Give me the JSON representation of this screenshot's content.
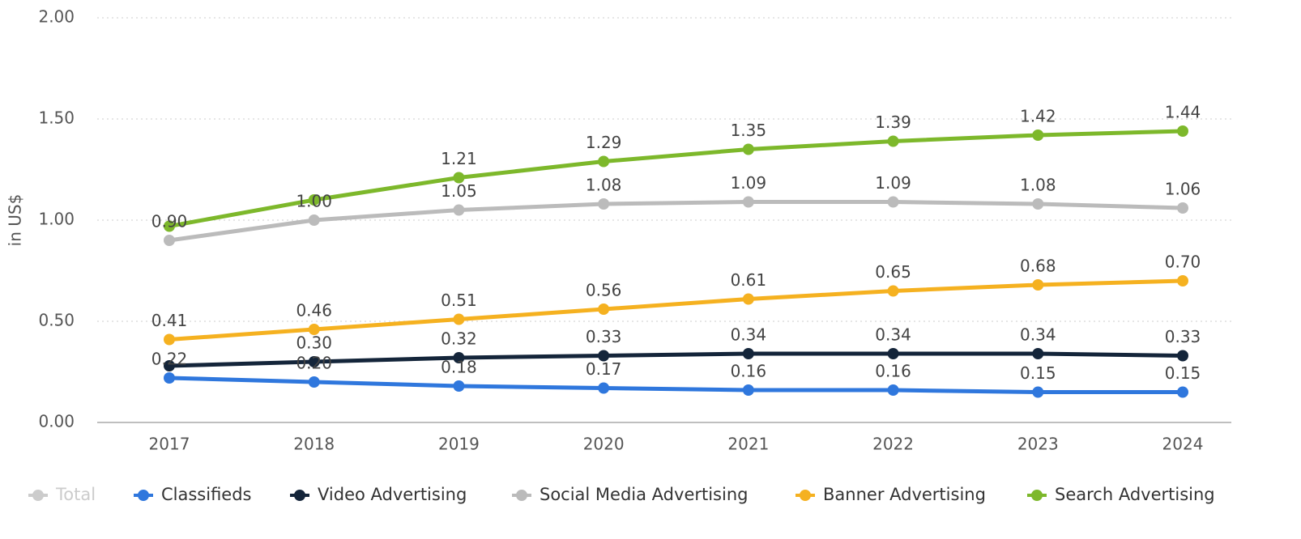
{
  "chart_data": {
    "type": "line",
    "y_label": "in US$",
    "categories": [
      "2017",
      "2018",
      "2019",
      "2020",
      "2021",
      "2022",
      "2023",
      "2024"
    ],
    "ylim": [
      0,
      2
    ],
    "yticks": [
      {
        "value": 0,
        "label": "0.00"
      },
      {
        "value": 0.5,
        "label": "0.50"
      },
      {
        "value": 1,
        "label": "1.00"
      },
      {
        "value": 1.5,
        "label": "1.50"
      },
      {
        "value": 2,
        "label": "2.00"
      }
    ],
    "grid": true,
    "legend": "bottom",
    "series": [
      {
        "name": "Total",
        "color": "#cccccc",
        "hidden": true
      },
      {
        "name": "Classifieds",
        "color": "#2f77dd",
        "values": [
          0.22,
          0.2,
          0.18,
          0.17,
          0.16,
          0.16,
          0.15,
          0.15
        ],
        "value_labels": [
          "0.22",
          "0.20",
          "0.18",
          "0.17",
          "0.16",
          "0.16",
          "0.15",
          "0.15"
        ]
      },
      {
        "name": "Video Advertising",
        "color": "#14253a",
        "values": [
          0.28,
          0.3,
          0.32,
          0.33,
          0.34,
          0.34,
          0.34,
          0.33
        ],
        "value_labels": [
          null,
          "0.30",
          "0.32",
          "0.33",
          "0.34",
          "0.34",
          "0.34",
          "0.33"
        ]
      },
      {
        "name": "Social Media Advertising",
        "color": "#bbbbbb",
        "values": [
          0.9,
          1.0,
          1.05,
          1.08,
          1.09,
          1.09,
          1.08,
          1.06
        ],
        "value_labels": [
          "0.90",
          "1.00",
          "1.05",
          "1.08",
          "1.09",
          "1.09",
          "1.08",
          "1.06"
        ]
      },
      {
        "name": "Banner Advertising",
        "color": "#f5b120",
        "values": [
          0.41,
          0.46,
          0.51,
          0.56,
          0.61,
          0.65,
          0.68,
          0.7
        ],
        "value_labels": [
          "0.41",
          "0.46",
          "0.51",
          "0.56",
          "0.61",
          "0.65",
          "0.68",
          "0.70"
        ]
      },
      {
        "name": "Search Advertising",
        "color": "#7db82b",
        "values": [
          0.97,
          1.1,
          1.21,
          1.29,
          1.35,
          1.39,
          1.42,
          1.44
        ],
        "value_labels": [
          null,
          null,
          "1.21",
          "1.29",
          "1.35",
          "1.39",
          "1.42",
          "1.44"
        ]
      }
    ]
  }
}
